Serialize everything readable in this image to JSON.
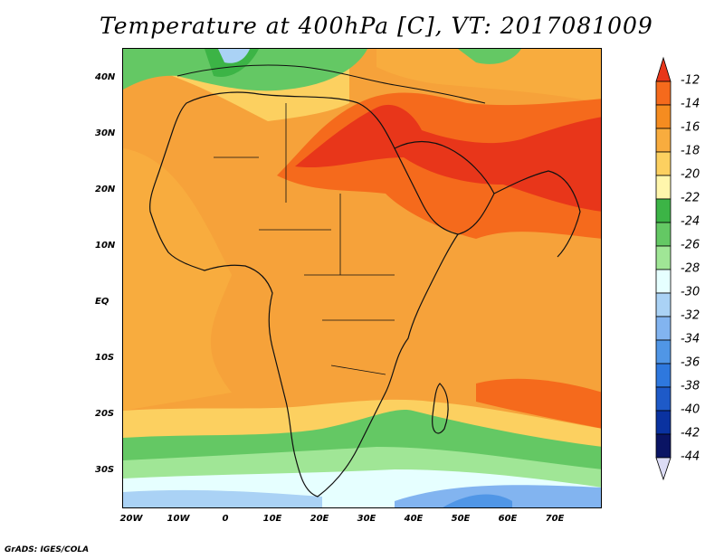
{
  "title": "Temperature at 400hPa [C], VT: 2017081009",
  "footer": "GrADS: IGES/COLA",
  "map": {
    "lat_labels": [
      "40N",
      "30N",
      "20N",
      "10N",
      "EQ",
      "10S",
      "20S",
      "30S"
    ],
    "lon_labels": [
      "20W",
      "10W",
      "0",
      "10E",
      "20E",
      "30E",
      "40E",
      "50E",
      "60E",
      "70E"
    ],
    "lat_values": [
      40,
      30,
      20,
      10,
      0,
      -10,
      -20,
      -30
    ],
    "lon_values": [
      -20,
      -10,
      0,
      10,
      20,
      30,
      40,
      50,
      60,
      70
    ]
  },
  "colorbar": {
    "labels": [
      "-12",
      "-14",
      "-16",
      "-18",
      "-20",
      "-22",
      "-24",
      "-26",
      "-28",
      "-30",
      "-32",
      "-34",
      "-36",
      "-38",
      "-40",
      "-42",
      "-44"
    ],
    "colors": [
      "#e8361a",
      "#f56a1c",
      "#f58c20",
      "#f8ac3e",
      "#fcd060",
      "#fff6ac",
      "#3cb446",
      "#64c864",
      "#a0e696",
      "#e6ffff",
      "#aad2f5",
      "#82b4f0",
      "#5096e6",
      "#2e78de",
      "#1e5ac8",
      "#0a32a0",
      "#0a1464"
    ],
    "top_arrow_color": "#e8361a",
    "bottom_arrow_color": "#dcdcf5"
  },
  "colors": {
    "warmest": "#e8361a",
    "warm": "#f56a1c",
    "base": "#f6a23a",
    "mild": "#fcd060",
    "pale": "#fff6ac",
    "green_dark": "#3cb446",
    "green": "#64c864",
    "green_light": "#a0e696",
    "cyan_pale": "#e6ffff",
    "blue_light": "#aad2f5",
    "blue": "#5096e6"
  }
}
